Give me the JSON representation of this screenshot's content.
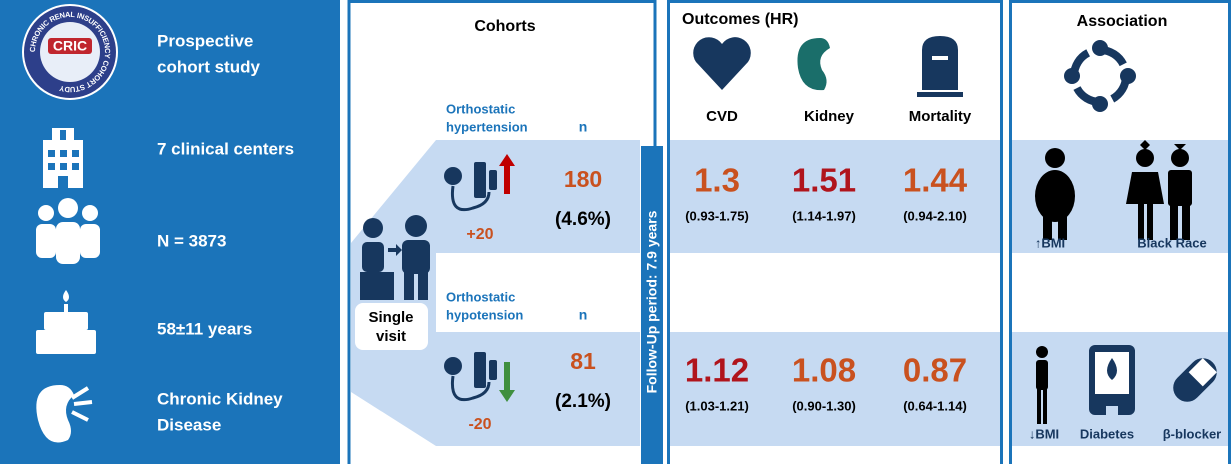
{
  "logo": {
    "abbr": "CRIC",
    "name": "CHRONIC RENAL INSUFFICIENCY COHORT STUDY"
  },
  "left_panel": {
    "items": [
      {
        "lines": [
          "Prospective",
          "cohort study"
        ]
      },
      {
        "lines": [
          "7 clinical centers"
        ]
      },
      {
        "lines": [
          "N = 3873"
        ]
      },
      {
        "lines": [
          "58±11 years"
        ]
      },
      {
        "lines": [
          "Chronic Kidney",
          "Disease"
        ]
      }
    ]
  },
  "cohorts": {
    "title": "Cohorts",
    "single_visit": [
      "Single",
      "visit"
    ],
    "groups": [
      {
        "label": [
          "Orthostatic",
          "hypertension"
        ],
        "n_header": "n",
        "n": "180",
        "pct": "(4.6%)",
        "change": "+20"
      },
      {
        "label": [
          "Orthostatic",
          "hypotension"
        ],
        "n_header": "n",
        "n": "81",
        "pct": "(2.1%)",
        "change": "-20"
      }
    ]
  },
  "follow_up": "Follow-Up period: 7.9 years",
  "outcomes": {
    "title": "Outcomes (HR)",
    "columns": [
      "CVD",
      "Kidney",
      "Mortality"
    ],
    "rows": [
      [
        {
          "hr": "1.3",
          "ci": "(0.93-1.75)",
          "color": "#c9511f"
        },
        {
          "hr": "1.51",
          "ci": "(1.14-1.97)",
          "color": "#b0141c"
        },
        {
          "hr": "1.44",
          "ci": "(0.94-2.10)",
          "color": "#c9511f"
        }
      ],
      [
        {
          "hr": "1.12",
          "ci": "(1.03-1.21)",
          "color": "#b0141c"
        },
        {
          "hr": "1.08",
          "ci": "(0.90-1.30)",
          "color": "#c9511f"
        },
        {
          "hr": "0.87",
          "ci": "(0.64-1.14)",
          "color": "#c9511f"
        }
      ]
    ]
  },
  "association": {
    "title": "Association",
    "rows": [
      [
        "↑BMI",
        "Black Race"
      ],
      [
        "↓BMI",
        "Diabetes",
        "β-blocker"
      ]
    ]
  }
}
